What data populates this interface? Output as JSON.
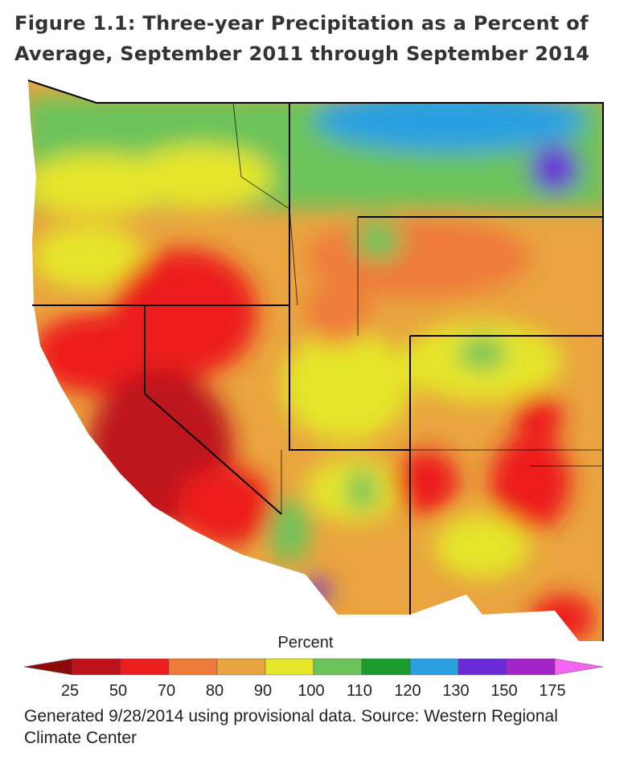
{
  "title": [
    "Figure 1.1: Three-year Precipitation as a Percent of",
    "Average, September 2011 through September 2014"
  ],
  "legend": {
    "label": "Percent",
    "ticks": [
      25,
      50,
      70,
      80,
      90,
      100,
      110,
      120,
      130,
      150,
      175
    ],
    "colors": [
      "#8c0a0a",
      "#bd121b",
      "#ec1f1f",
      "#ef7b3a",
      "#e9a43f",
      "#e5e52a",
      "#6cc35a",
      "#1c9c2c",
      "#2aa0e0",
      "#6a2bd6",
      "#a324c8",
      "#f466f2"
    ]
  },
  "source": [
    "Generated 9/28/2014 using provisional data. Source: Western Regional",
    "Climate Center"
  ]
}
